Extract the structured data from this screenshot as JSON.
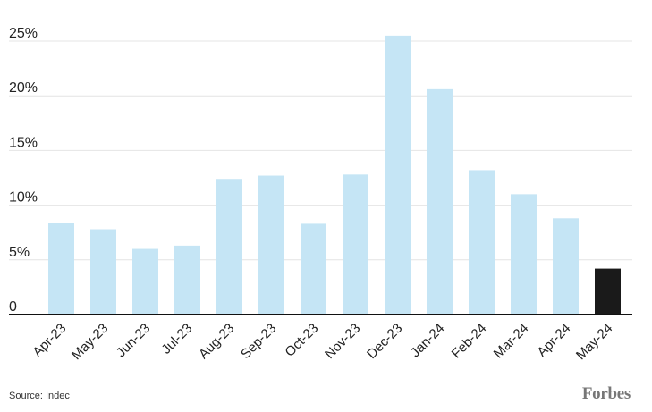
{
  "chart_data": {
    "type": "bar",
    "categories": [
      "Apr-23",
      "May-23",
      "Jun-23",
      "Jul-23",
      "Aug-23",
      "Sep-23",
      "Oct-23",
      "Nov-23",
      "Dec-23",
      "Jan-24",
      "Feb-24",
      "Mar-24",
      "Apr-24",
      "May-24"
    ],
    "values": [
      8.4,
      7.8,
      6.0,
      6.3,
      12.4,
      12.7,
      8.3,
      12.8,
      25.5,
      20.6,
      13.2,
      11.0,
      8.8,
      4.2
    ],
    "ylim": [
      0,
      25
    ],
    "yticks": [
      0,
      5,
      10,
      15,
      20,
      25
    ],
    "ytick_labels": [
      "0",
      "5%",
      "10%",
      "15%",
      "20%",
      "25%"
    ],
    "highlight_index": 13,
    "colors": {
      "bar": "#c5e5f5",
      "highlight": "#1a1a1a",
      "grid": "#e4e4e4",
      "axis": "#111111"
    },
    "grid": true
  },
  "footer": {
    "source": "Source: Indec",
    "logo": "Forbes"
  }
}
